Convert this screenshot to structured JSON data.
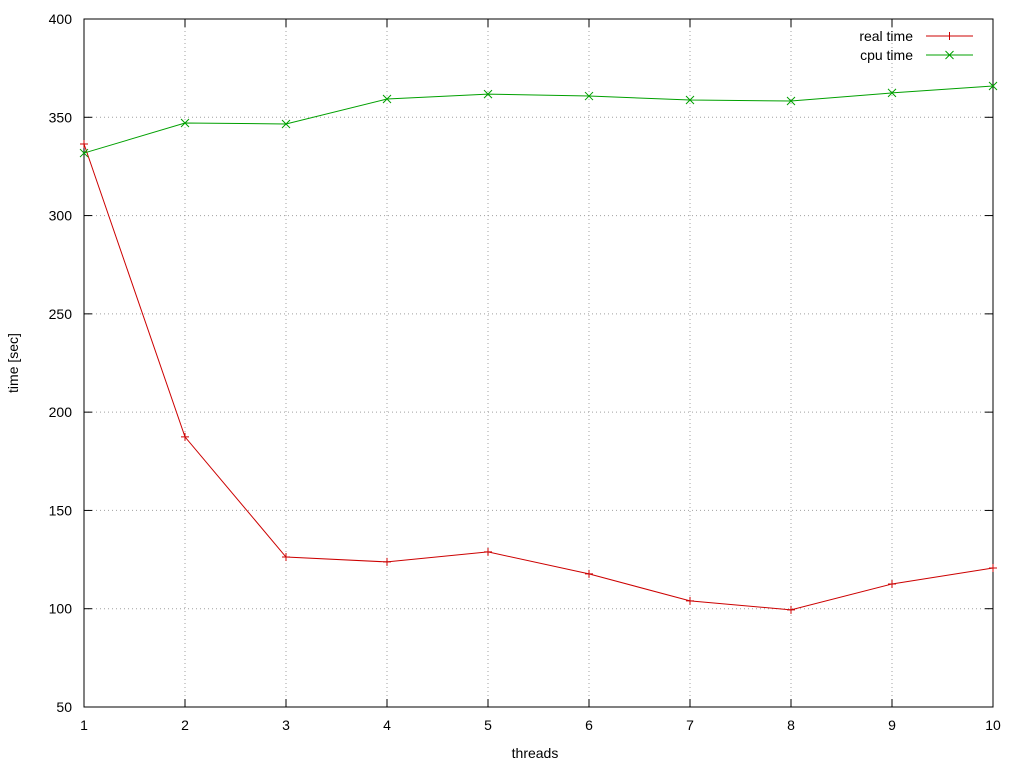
{
  "chart_data": {
    "type": "line",
    "x_label": "threads",
    "y_label": "time [sec]",
    "x": [
      1,
      2,
      3,
      4,
      5,
      6,
      7,
      8,
      9,
      10
    ],
    "series": [
      {
        "name": "real time",
        "color": "#cc0000",
        "marker": "+",
        "values": [
          336.4,
          187.4,
          126.3,
          123.8,
          128.9,
          117.7,
          104,
          99.4,
          112.6,
          120.7
        ]
      },
      {
        "name": "cpu time",
        "color": "#00a000",
        "marker": "x",
        "values": [
          331.8,
          347.1,
          346.6,
          359.3,
          361.8,
          360.8,
          358.8,
          358.3,
          362.4,
          365.9
        ]
      }
    ],
    "xlim": [
      1,
      10
    ],
    "ylim": [
      50,
      400
    ],
    "xticks": [
      1,
      2,
      3,
      4,
      5,
      6,
      7,
      8,
      9,
      10
    ],
    "yticks": [
      50,
      100,
      150,
      200,
      250,
      300,
      350,
      400
    ],
    "grid": true,
    "legend": "top-right"
  }
}
